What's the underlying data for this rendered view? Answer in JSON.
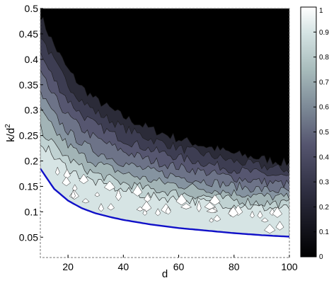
{
  "chart_data": {
    "type": "heatmap",
    "title": "",
    "xlabel": "d",
    "ylabel_base": "k/d",
    "ylabel_exp": "2",
    "xlim": [
      10,
      100
    ],
    "ylim": [
      0.01,
      0.5
    ],
    "x_ticks": [
      20,
      40,
      60,
      80,
      100
    ],
    "x_tick_labels": [
      "20",
      "40",
      "60",
      "80",
      "100"
    ],
    "y_ticks": [
      0.05,
      0.1,
      0.15,
      0.2,
      0.25,
      0.3,
      0.35,
      0.4,
      0.45,
      0.5
    ],
    "y_tick_labels": [
      "0.05",
      "0.1",
      "0.15",
      "0.2",
      "0.25",
      "0.3",
      "0.35",
      "0.4",
      "0.45",
      "0.5"
    ],
    "colorbar": {
      "range": [
        0,
        1
      ],
      "ticks": [
        0,
        0.1,
        0.2,
        0.3,
        0.4,
        0.5,
        0.6,
        0.7,
        0.8,
        0.9,
        1
      ],
      "tick_labels": [
        "0",
        "0.1",
        "0.2",
        "0.3",
        "0.4",
        "0.5",
        "0.6",
        "0.7",
        "0.8",
        "0.9",
        "1"
      ],
      "colormap": "bone"
    },
    "boundary_curve": {
      "color": "#1010c8",
      "x": [
        10,
        15,
        20,
        25,
        30,
        35,
        40,
        50,
        60,
        70,
        80,
        90,
        100
      ],
      "y": [
        0.185,
        0.145,
        0.122,
        0.107,
        0.097,
        0.09,
        0.084,
        0.075,
        0.068,
        0.063,
        0.058,
        0.054,
        0.051
      ]
    },
    "transition_band": {
      "x": [
        10,
        15,
        20,
        25,
        30,
        40,
        50,
        60,
        70,
        80,
        90,
        100
      ],
      "lower_y": [
        0.22,
        0.19,
        0.17,
        0.155,
        0.145,
        0.13,
        0.12,
        0.115,
        0.11,
        0.105,
        0.1,
        0.1
      ],
      "upper_y": [
        0.5,
        0.44,
        0.39,
        0.355,
        0.33,
        0.295,
        0.27,
        0.25,
        0.235,
        0.22,
        0.21,
        0.2
      ]
    },
    "grid": false
  }
}
